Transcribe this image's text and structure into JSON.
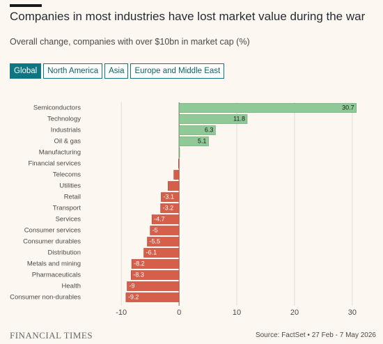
{
  "tabs": [
    "Global",
    "North America",
    "Asia",
    "Europe and Middle East"
  ],
  "brand": "FINANCIAL TIMES",
  "chart_data": {
    "type": "bar",
    "orientation": "horizontal",
    "title": "Companies in most industries have lost market value during the war",
    "subtitle": "Overall change, companies with over $10bn in market cap (%)",
    "source": "Source: FactSet • 27 Feb - 7 May 2026",
    "categories": [
      "Semiconductors",
      "Technology",
      "Industrials",
      "Oil & gas",
      "Manufacturing",
      "Financial services",
      "Telecoms",
      "Utilities",
      "Retail",
      "Transport",
      "Services",
      "Consumer services",
      "Consumer durables",
      "Distribution",
      "Metals and mining",
      "Pharmaceuticals",
      "Health",
      "Consumer non-durables"
    ],
    "values": [
      30.7,
      11.8,
      6.3,
      5.1,
      0.1,
      -0.1,
      -0.9,
      -1.9,
      -3.1,
      -3.2,
      -4.7,
      -5,
      -5.5,
      -6.1,
      -8.2,
      -8.3,
      -9,
      -9.2
    ],
    "value_labels": [
      "30.7",
      "11.8",
      "6.3",
      "5.1",
      null,
      null,
      null,
      null,
      "-3.1",
      "-3.2",
      "-4.7",
      "-5",
      "-5.5",
      "-6.1",
      "-8.2",
      "-8.3",
      "-9",
      "-9.2"
    ],
    "positive_color": "#8fc997",
    "negative_color": "#d65f4b",
    "xlim": [
      -16.3,
      31.1
    ],
    "xticks": [
      -10,
      0,
      10,
      20,
      30
    ],
    "grid": true
  }
}
